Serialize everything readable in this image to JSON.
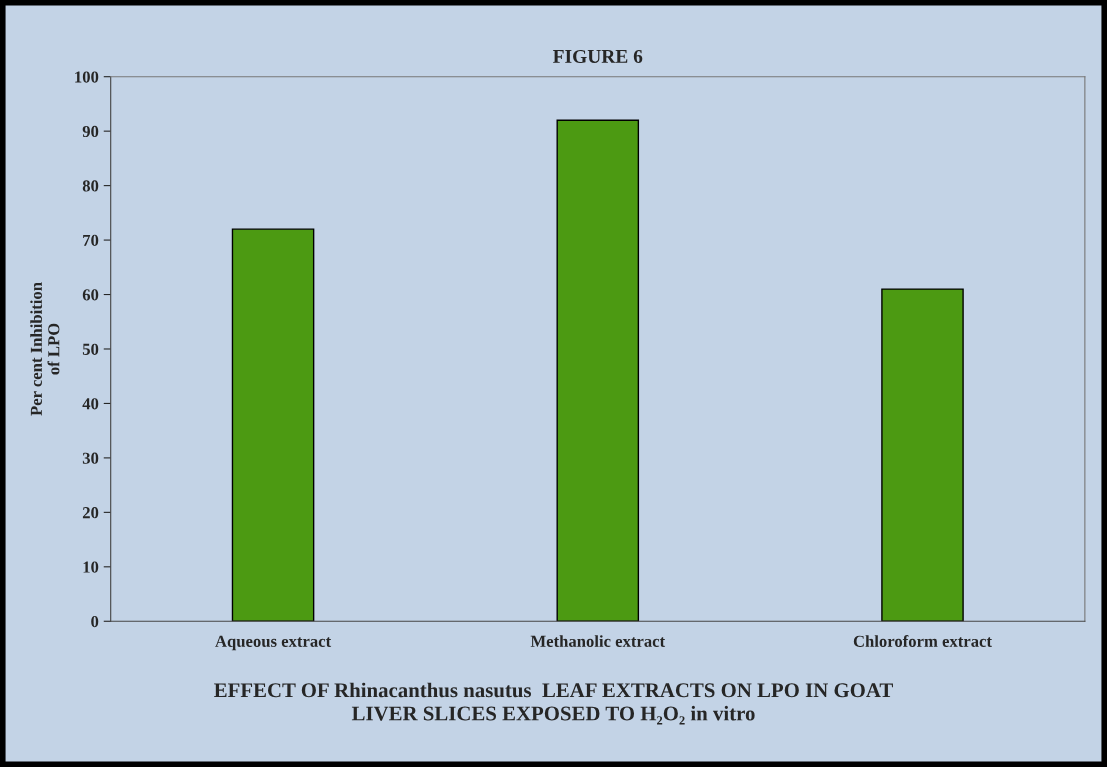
{
  "chart_data": {
    "type": "bar",
    "title": "FIGURE 6",
    "ylabel": "Per cent Inhibition\nof LPO",
    "categories": [
      "Aqueous extract",
      "Methanolic extract",
      "Chloroform extract"
    ],
    "values": [
      72,
      92,
      61
    ],
    "color": "#4c9a12",
    "ylim": [
      0,
      100
    ],
    "yticks": [
      0,
      10,
      20,
      30,
      40,
      50,
      60,
      70,
      80,
      90,
      100
    ],
    "grid": false,
    "legend": false,
    "annotations": [
      "EFFECT OF Rhinacanthus nasutus  LEAF EXTRACTS ON LPO IN GOAT\nLIVER SLICES EXPOSED TO H₂O₂ in vitro"
    ]
  }
}
